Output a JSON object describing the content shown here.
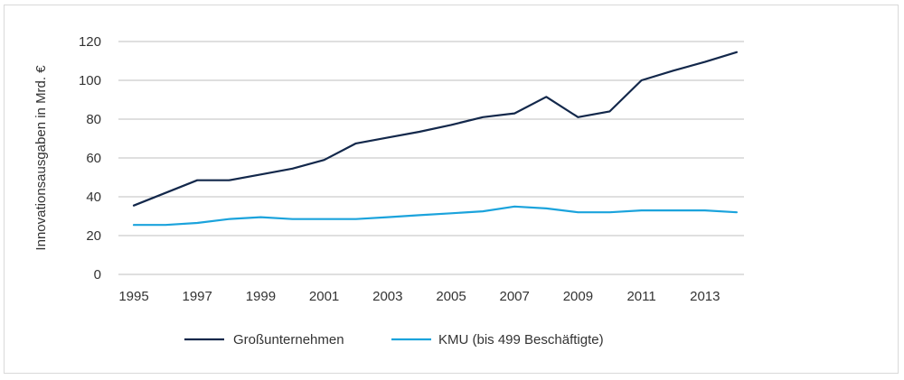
{
  "chart_data": {
    "type": "line",
    "title": "",
    "xlabel": "",
    "ylabel": "Innovationsausgaben in Mrd. €",
    "ylim": [
      0,
      120
    ],
    "yticks": [
      0,
      20,
      40,
      60,
      80,
      100,
      120
    ],
    "xlim": [
      1995,
      2014
    ],
    "xticks": [
      1995,
      1997,
      1999,
      2001,
      2003,
      2005,
      2007,
      2009,
      2011,
      2013
    ],
    "grid": true,
    "legend_position": "bottom",
    "x": [
      1995,
      1996,
      1997,
      1998,
      1999,
      2000,
      2001,
      2002,
      2003,
      2004,
      2005,
      2006,
      2007,
      2008,
      2009,
      2010,
      2011,
      2012,
      2013,
      2014
    ],
    "series": [
      {
        "name": "Großunternehmen",
        "color": "#13284b",
        "values": [
          35.5,
          42,
          48.5,
          48.5,
          51.5,
          54.5,
          59,
          67.5,
          70.5,
          73.5,
          77,
          81,
          83,
          91.5,
          81,
          84,
          100,
          105,
          109.5,
          114.5
        ]
      },
      {
        "name": "KMU (bis 499 Beschäftigte)",
        "color": "#1ba3dc",
        "values": [
          25.5,
          25.5,
          26.5,
          28.5,
          29.5,
          28.5,
          28.5,
          28.5,
          29.5,
          30.5,
          31.5,
          32.5,
          35,
          34,
          32,
          32,
          33,
          33,
          33,
          32
        ]
      }
    ]
  }
}
